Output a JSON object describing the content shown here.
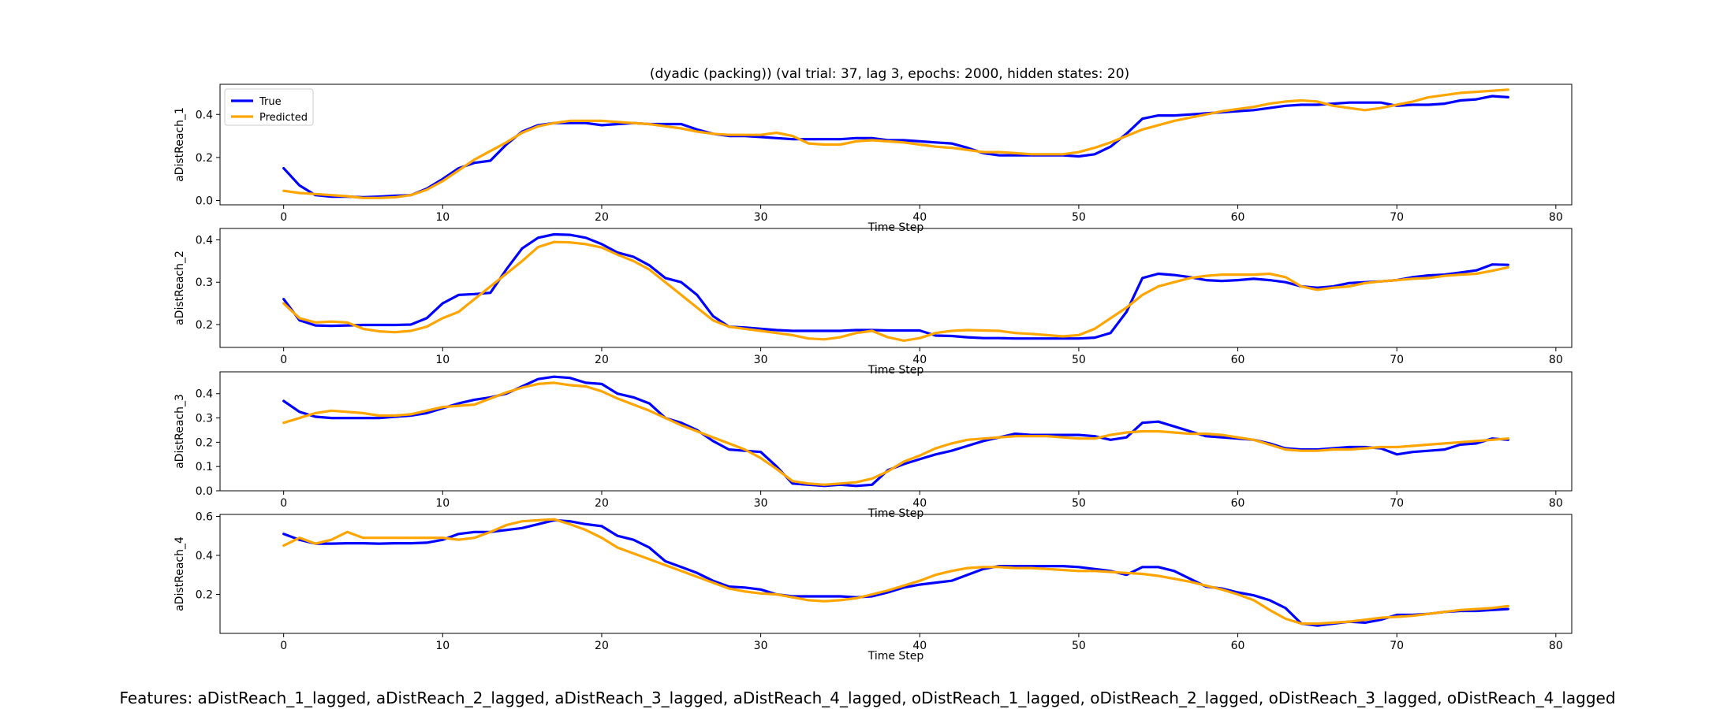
{
  "figure": {
    "title": "(dyadic (packing)) (val trial: 37, lag 3, epochs: 2000, hidden states: 20)",
    "footer": "Features: aDistReach_1_lagged, aDistReach_2_lagged, aDistReach_3_lagged, aDistReach_4_lagged, oDistReach_1_lagged, oDistReach_2_lagged, oDistReach_3_lagged, oDistReach_4_lagged",
    "colors": {
      "true": "#0000ff",
      "predicted": "#ffa500"
    }
  },
  "chart_data": [
    {
      "type": "line",
      "ylabel": "aDistReach_1",
      "xlabel": "Time Step",
      "xlim": [
        -4,
        81
      ],
      "ylim": [
        -0.02,
        0.54
      ],
      "xticks": [
        0,
        10,
        20,
        30,
        40,
        50,
        60,
        70,
        80
      ],
      "yticks": [
        0.0,
        0.2,
        0.4
      ],
      "ytick_decimals": 1,
      "legend": {
        "position": "top-left",
        "entries": [
          "True",
          "Predicted"
        ]
      },
      "series": [
        {
          "name": "True",
          "color": "#0000ff",
          "values": [
            0.15,
            0.07,
            0.025,
            0.018,
            0.018,
            0.015,
            0.018,
            0.022,
            0.025,
            0.055,
            0.1,
            0.15,
            0.175,
            0.185,
            0.26,
            0.32,
            0.35,
            0.36,
            0.36,
            0.36,
            0.35,
            0.355,
            0.36,
            0.355,
            0.355,
            0.355,
            0.33,
            0.31,
            0.3,
            0.3,
            0.295,
            0.29,
            0.285,
            0.285,
            0.285,
            0.285,
            0.29,
            0.29,
            0.28,
            0.28,
            0.275,
            0.27,
            0.265,
            0.245,
            0.22,
            0.21,
            0.21,
            0.21,
            0.21,
            0.21,
            0.205,
            0.215,
            0.25,
            0.31,
            0.38,
            0.395,
            0.395,
            0.4,
            0.405,
            0.41,
            0.415,
            0.42,
            0.43,
            0.44,
            0.445,
            0.445,
            0.45,
            0.455,
            0.455,
            0.455,
            0.44,
            0.445,
            0.445,
            0.45,
            0.465,
            0.47,
            0.485,
            0.48
          ]
        },
        {
          "name": "Predicted",
          "color": "#ffa500",
          "values": [
            0.045,
            0.035,
            0.03,
            0.025,
            0.02,
            0.012,
            0.012,
            0.015,
            0.025,
            0.05,
            0.09,
            0.14,
            0.19,
            0.23,
            0.27,
            0.315,
            0.345,
            0.36,
            0.37,
            0.37,
            0.37,
            0.365,
            0.36,
            0.355,
            0.345,
            0.335,
            0.32,
            0.31,
            0.305,
            0.305,
            0.305,
            0.315,
            0.3,
            0.265,
            0.26,
            0.26,
            0.275,
            0.28,
            0.275,
            0.27,
            0.26,
            0.25,
            0.245,
            0.235,
            0.225,
            0.225,
            0.22,
            0.215,
            0.215,
            0.215,
            0.225,
            0.245,
            0.27,
            0.3,
            0.33,
            0.35,
            0.37,
            0.385,
            0.4,
            0.415,
            0.425,
            0.435,
            0.45,
            0.46,
            0.465,
            0.46,
            0.44,
            0.43,
            0.42,
            0.43,
            0.445,
            0.46,
            0.48,
            0.49,
            0.5,
            0.505,
            0.51,
            0.515
          ]
        }
      ]
    },
    {
      "type": "line",
      "ylabel": "aDistReach_2",
      "xlabel": "Time Step",
      "xlim": [
        -4,
        81
      ],
      "ylim": [
        0.146,
        0.427
      ],
      "xticks": [
        0,
        10,
        20,
        30,
        40,
        50,
        60,
        70,
        80
      ],
      "yticks": [
        0.2,
        0.3,
        0.4
      ],
      "ytick_decimals": 1,
      "series": [
        {
          "name": "True",
          "color": "#0000ff",
          "values": [
            0.26,
            0.21,
            0.198,
            0.197,
            0.198,
            0.199,
            0.199,
            0.199,
            0.2,
            0.215,
            0.25,
            0.27,
            0.272,
            0.275,
            0.33,
            0.38,
            0.405,
            0.413,
            0.412,
            0.405,
            0.39,
            0.37,
            0.36,
            0.34,
            0.31,
            0.3,
            0.27,
            0.22,
            0.195,
            0.193,
            0.19,
            0.187,
            0.185,
            0.185,
            0.185,
            0.185,
            0.187,
            0.187,
            0.186,
            0.186,
            0.186,
            0.174,
            0.173,
            0.17,
            0.168,
            0.168,
            0.167,
            0.167,
            0.167,
            0.167,
            0.167,
            0.169,
            0.18,
            0.23,
            0.31,
            0.32,
            0.317,
            0.312,
            0.305,
            0.303,
            0.305,
            0.308,
            0.305,
            0.3,
            0.29,
            0.287,
            0.29,
            0.298,
            0.3,
            0.302,
            0.305,
            0.312,
            0.316,
            0.318,
            0.323,
            0.328,
            0.342,
            0.341
          ]
        },
        {
          "name": "Predicted",
          "color": "#ffa500",
          "values": [
            0.25,
            0.215,
            0.205,
            0.207,
            0.205,
            0.19,
            0.184,
            0.182,
            0.185,
            0.195,
            0.215,
            0.23,
            0.26,
            0.29,
            0.32,
            0.35,
            0.383,
            0.395,
            0.394,
            0.39,
            0.382,
            0.365,
            0.35,
            0.33,
            0.3,
            0.27,
            0.24,
            0.21,
            0.195,
            0.19,
            0.185,
            0.18,
            0.175,
            0.167,
            0.165,
            0.17,
            0.18,
            0.185,
            0.17,
            0.162,
            0.168,
            0.18,
            0.185,
            0.187,
            0.186,
            0.185,
            0.18,
            0.178,
            0.175,
            0.172,
            0.175,
            0.19,
            0.215,
            0.24,
            0.27,
            0.29,
            0.3,
            0.31,
            0.315,
            0.318,
            0.318,
            0.318,
            0.32,
            0.312,
            0.29,
            0.282,
            0.287,
            0.29,
            0.298,
            0.302,
            0.305,
            0.308,
            0.31,
            0.315,
            0.318,
            0.32,
            0.327,
            0.335
          ]
        }
      ]
    },
    {
      "type": "line",
      "ylabel": "aDistReach_3",
      "xlabel": "Time Step",
      "xlim": [
        -4,
        81
      ],
      "ylim": [
        0.0,
        0.49
      ],
      "xticks": [
        0,
        10,
        20,
        30,
        40,
        50,
        60,
        70,
        80
      ],
      "yticks": [
        0.0,
        0.1,
        0.2,
        0.3,
        0.4
      ],
      "ytick_decimals": 1,
      "series": [
        {
          "name": "True",
          "color": "#0000ff",
          "values": [
            0.37,
            0.325,
            0.305,
            0.3,
            0.3,
            0.3,
            0.3,
            0.305,
            0.31,
            0.32,
            0.34,
            0.36,
            0.375,
            0.385,
            0.4,
            0.43,
            0.46,
            0.47,
            0.465,
            0.445,
            0.44,
            0.4,
            0.385,
            0.36,
            0.3,
            0.28,
            0.25,
            0.205,
            0.17,
            0.165,
            0.16,
            0.1,
            0.03,
            0.025,
            0.02,
            0.025,
            0.02,
            0.025,
            0.085,
            0.11,
            0.13,
            0.15,
            0.165,
            0.185,
            0.205,
            0.22,
            0.235,
            0.23,
            0.23,
            0.23,
            0.23,
            0.225,
            0.21,
            0.22,
            0.28,
            0.285,
            0.265,
            0.245,
            0.225,
            0.22,
            0.215,
            0.21,
            0.195,
            0.175,
            0.17,
            0.17,
            0.175,
            0.18,
            0.18,
            0.175,
            0.15,
            0.16,
            0.165,
            0.17,
            0.19,
            0.195,
            0.215,
            0.21
          ]
        },
        {
          "name": "Predicted",
          "color": "#ffa500",
          "values": [
            0.28,
            0.3,
            0.32,
            0.33,
            0.325,
            0.32,
            0.31,
            0.31,
            0.315,
            0.33,
            0.345,
            0.35,
            0.355,
            0.38,
            0.405,
            0.425,
            0.44,
            0.445,
            0.435,
            0.43,
            0.41,
            0.38,
            0.355,
            0.33,
            0.3,
            0.27,
            0.245,
            0.22,
            0.195,
            0.17,
            0.135,
            0.09,
            0.04,
            0.03,
            0.025,
            0.03,
            0.035,
            0.05,
            0.08,
            0.12,
            0.145,
            0.175,
            0.195,
            0.21,
            0.215,
            0.22,
            0.225,
            0.225,
            0.225,
            0.22,
            0.215,
            0.215,
            0.23,
            0.24,
            0.245,
            0.245,
            0.24,
            0.235,
            0.235,
            0.23,
            0.22,
            0.21,
            0.19,
            0.17,
            0.165,
            0.165,
            0.17,
            0.17,
            0.175,
            0.18,
            0.18,
            0.185,
            0.19,
            0.195,
            0.2,
            0.205,
            0.21,
            0.215
          ]
        }
      ]
    },
    {
      "type": "line",
      "ylabel": "aDistReach_4",
      "xlabel": "Time Step",
      "xlim": [
        -4,
        81
      ],
      "ylim": [
        0.0,
        0.61
      ],
      "xticks": [
        0,
        10,
        20,
        30,
        40,
        50,
        60,
        70,
        80
      ],
      "yticks": [
        0.2,
        0.4,
        0.6
      ],
      "ytick_decimals": 1,
      "series": [
        {
          "name": "True",
          "color": "#0000ff",
          "values": [
            0.51,
            0.48,
            0.46,
            0.46,
            0.462,
            0.462,
            0.46,
            0.462,
            0.462,
            0.465,
            0.48,
            0.51,
            0.52,
            0.52,
            0.53,
            0.54,
            0.56,
            0.58,
            0.575,
            0.56,
            0.55,
            0.5,
            0.48,
            0.44,
            0.37,
            0.34,
            0.31,
            0.27,
            0.24,
            0.235,
            0.225,
            0.2,
            0.19,
            0.19,
            0.19,
            0.19,
            0.185,
            0.19,
            0.21,
            0.235,
            0.25,
            0.26,
            0.27,
            0.3,
            0.33,
            0.345,
            0.345,
            0.345,
            0.345,
            0.345,
            0.34,
            0.33,
            0.32,
            0.3,
            0.34,
            0.34,
            0.32,
            0.28,
            0.24,
            0.23,
            0.21,
            0.195,
            0.17,
            0.13,
            0.05,
            0.04,
            0.05,
            0.06,
            0.055,
            0.07,
            0.095,
            0.095,
            0.1,
            0.11,
            0.115,
            0.115,
            0.12,
            0.125
          ]
        },
        {
          "name": "Predicted",
          "color": "#ffa500",
          "values": [
            0.45,
            0.49,
            0.46,
            0.48,
            0.52,
            0.49,
            0.49,
            0.49,
            0.49,
            0.49,
            0.49,
            0.48,
            0.49,
            0.52,
            0.555,
            0.575,
            0.58,
            0.585,
            0.56,
            0.53,
            0.49,
            0.44,
            0.41,
            0.38,
            0.35,
            0.32,
            0.29,
            0.26,
            0.23,
            0.215,
            0.205,
            0.2,
            0.185,
            0.17,
            0.165,
            0.17,
            0.18,
            0.2,
            0.22,
            0.245,
            0.27,
            0.3,
            0.32,
            0.335,
            0.34,
            0.34,
            0.335,
            0.335,
            0.33,
            0.325,
            0.32,
            0.32,
            0.315,
            0.31,
            0.305,
            0.295,
            0.28,
            0.265,
            0.245,
            0.225,
            0.2,
            0.17,
            0.12,
            0.075,
            0.05,
            0.05,
            0.055,
            0.06,
            0.07,
            0.08,
            0.085,
            0.09,
            0.1,
            0.11,
            0.12,
            0.125,
            0.13,
            0.14
          ]
        }
      ]
    }
  ]
}
